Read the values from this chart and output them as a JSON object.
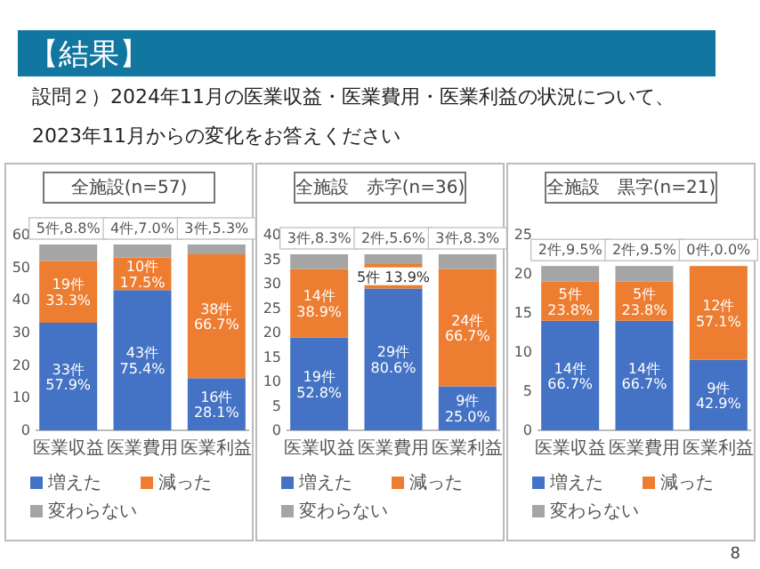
{
  "chart_data": [
    {
      "type": "other",
      "title": "【結果】",
      "subtitle": "設問２）2024年11月の医業収益・医業費用・医業利益の状況について、\n2023年11月からの変化をお答えください",
      "annotations": [
        "8"
      ]
    },
    {
      "type": "bar",
      "title": "全施設(n=57)",
      "categories": [
        "医業収益",
        "医業費用",
        "医業利益"
      ],
      "stacked": true,
      "legend": "bottom",
      "ylim": [
        0,
        60
      ],
      "yticks": [
        0,
        10,
        20,
        30,
        40,
        50,
        60
      ],
      "series": [
        {
          "name": "増えた",
          "color": "#4472c4",
          "values": [
            33,
            43,
            16
          ],
          "value_labels": [
            "33件\n57.9%",
            "43件\n75.4%",
            "16件\n28.1%"
          ]
        },
        {
          "name": "減った",
          "color": "#ed7d31",
          "values": [
            19,
            10,
            38
          ],
          "value_labels": [
            "19件\n33.3%",
            "10件\n17.5%",
            "38件\n66.7%"
          ]
        },
        {
          "name": "変わらない",
          "color": "#a5a5a5",
          "values": [
            5,
            4,
            3
          ],
          "value_labels": [
            "5件,8.8%",
            "4件,7.0%",
            "3件,5.3%"
          ]
        }
      ]
    },
    {
      "type": "bar",
      "title": "全施設　赤字(n=36)",
      "categories": [
        "医業収益",
        "医業費用",
        "医業利益"
      ],
      "stacked": true,
      "legend": "bottom",
      "ylim": [
        0,
        40
      ],
      "yticks": [
        0,
        5,
        10,
        15,
        20,
        25,
        30,
        35,
        40
      ],
      "series": [
        {
          "name": "増えた",
          "color": "#4472c4",
          "values": [
            19,
            29,
            9
          ],
          "value_labels": [
            "19件\n52.8%",
            "29件\n80.6%",
            "9件\n25.0%"
          ]
        },
        {
          "name": "減った",
          "color": "#ed7d31",
          "values": [
            14,
            5,
            24
          ],
          "value_labels": [
            "14件\n38.9%",
            "5件 13.9%",
            "24件\n66.7%"
          ]
        },
        {
          "name": "変わらない",
          "color": "#a5a5a5",
          "values": [
            3,
            2,
            3
          ],
          "value_labels": [
            "3件,8.3%",
            "2件,5.6%",
            "3件,8.3%"
          ]
        }
      ]
    },
    {
      "type": "bar",
      "title": "全施設　黒字(n=21)",
      "categories": [
        "医業収益",
        "医業費用",
        "医業利益"
      ],
      "stacked": true,
      "legend": "bottom",
      "ylim": [
        0,
        25
      ],
      "yticks": [
        0,
        5,
        10,
        15,
        20,
        25
      ],
      "series": [
        {
          "name": "増えた",
          "color": "#4472c4",
          "values": [
            14,
            14,
            9
          ],
          "value_labels": [
            "14件\n66.7%",
            "14件\n66.7%",
            "9件\n42.9%"
          ]
        },
        {
          "name": "減った",
          "color": "#ed7d31",
          "values": [
            5,
            5,
            12
          ],
          "value_labels": [
            "5件\n23.8%",
            "5件\n23.8%",
            "12件\n57.1%"
          ]
        },
        {
          "name": "変わらない",
          "color": "#a5a5a5",
          "values": [
            2,
            2,
            0
          ],
          "value_labels": [
            "2件,9.5%",
            "2件,9.5%",
            "0件,0.0%"
          ]
        }
      ]
    }
  ]
}
